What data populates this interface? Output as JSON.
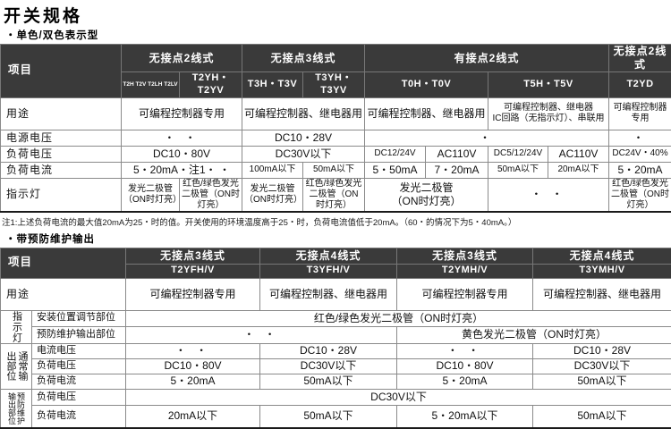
{
  "page": {
    "title": "开关规格",
    "section1": "・单色/双色表示型",
    "section2": "・带预防维护输出",
    "note1": "注1:上述负荷电流的最大值20mA为25・时的值。开关使用的环境温度高于25・时，负荷电流值低于20mA。（60・的情况下为5・40mA。）"
  },
  "colors": {
    "header_bg": "#3a3a3a",
    "header_text": "#ffffff",
    "grid": "#8a8a8a"
  },
  "table1": {
    "item_header": "项目",
    "groups": [
      {
        "label": "无接点2线式",
        "span": 2
      },
      {
        "label": "无接点3线式",
        "span": 2
      },
      {
        "label": "有接点2线式",
        "span": 4
      },
      {
        "label": "无接点2线式",
        "span": 1
      }
    ],
    "models": [
      {
        "label": "T2H T2V T2LH T2LV",
        "span": 1,
        "tiny": true
      },
      {
        "label": "T2YH・T2YV",
        "span": 1
      },
      {
        "label": "T3H・T3V",
        "span": 1
      },
      {
        "label": "T3YH・T3YV",
        "span": 1
      },
      {
        "label": "T0H・T0V",
        "span": 2
      },
      {
        "label": "T5H・T5V",
        "span": 2
      },
      {
        "label": "T2YD",
        "span": 1
      }
    ],
    "rows": [
      {
        "label": "用途",
        "cells": [
          {
            "text": "可编程控制器专用",
            "span": 2
          },
          {
            "text": "可编程控制器、继电器用",
            "span": 2
          },
          {
            "text": "可编程控制器、继电器用",
            "span": 2
          },
          {
            "text": "可编程控制器、继电器\nIC回路（无指示灯）、串联用",
            "span": 2,
            "small": true
          },
          {
            "text": "可编程控制器专用",
            "span": 1,
            "small": true
          }
        ]
      },
      {
        "label": "电源电压",
        "cells": [
          {
            "text": "・ ・",
            "span": 2,
            "dots": true
          },
          {
            "text": "DC10・28V",
            "span": 2
          },
          {
            "text": "・",
            "span": 4,
            "dots": true
          },
          {
            "text": "・",
            "span": 1,
            "dots": true
          }
        ]
      },
      {
        "label": "负荷电压",
        "cells": [
          {
            "text": "DC10・80V",
            "span": 2
          },
          {
            "text": "DC30V以下",
            "span": 2
          },
          {
            "text": "DC12/24V",
            "span": 1,
            "small": true
          },
          {
            "text": "AC110V",
            "span": 1
          },
          {
            "text": "DC5/12/24V",
            "span": 1,
            "small": true
          },
          {
            "text": "AC110V",
            "span": 1
          },
          {
            "text": "DC24V・40%",
            "span": 1,
            "small": true
          }
        ]
      },
      {
        "label": "负荷电流",
        "cells": [
          {
            "text": "5・20mA・注1・ ・",
            "span": 2
          },
          {
            "text": "100mA以下",
            "span": 1,
            "small": true
          },
          {
            "text": "50mA以下",
            "span": 1,
            "small": true
          },
          {
            "text": "5・50mA",
            "span": 1
          },
          {
            "text": "7・20mA",
            "span": 1
          },
          {
            "text": "50mA以下",
            "span": 1,
            "small": true
          },
          {
            "text": "20mA以下",
            "span": 1,
            "small": true
          },
          {
            "text": "5・20mA",
            "span": 1
          }
        ]
      },
      {
        "label": "指示灯",
        "cells": [
          {
            "text": "发光二极管\n（ON时灯亮）",
            "span": 1,
            "small": true
          },
          {
            "text": "红色/绿色发光\n二极管（ON时灯亮）",
            "span": 1,
            "small": true
          },
          {
            "text": "发光二极管\n（ON时灯亮）",
            "span": 1,
            "small": true
          },
          {
            "text": "红色/绿色发光\n二极管（ON时灯亮）",
            "span": 1,
            "small": true
          },
          {
            "text": "发光二极管\n（ON时灯亮）",
            "span": 2
          },
          {
            "text": "・ ・",
            "span": 2,
            "dots": true
          },
          {
            "text": "红色/绿色发光\n二极管（ON时灯亮）",
            "span": 1,
            "small": true
          }
        ]
      }
    ]
  },
  "table2": {
    "item_header": "项目",
    "groups": [
      {
        "label": "无接点3线式",
        "model": "T2YFH/V"
      },
      {
        "label": "无接点4线式",
        "model": "T3YFH/V"
      },
      {
        "label": "无接点3线式",
        "model": "T2YMH/V"
      },
      {
        "label": "无接点4线式",
        "model": "T3YMH/V"
      }
    ],
    "sections": [
      {
        "group": null,
        "rows": [
          {
            "label": "用途",
            "cells": [
              {
                "text": "可编程控制器专用"
              },
              {
                "text": "可编程控制器、继电器用"
              },
              {
                "text": "可编程控制器专用"
              },
              {
                "text": "可编程控制器、继电器用"
              }
            ]
          }
        ]
      },
      {
        "group": "指示灯",
        "rows": [
          {
            "label": "安装位置调节部位",
            "cells": [
              {
                "text": "红色/绿色发光二极管（ON时灯亮）",
                "span": 4
              }
            ]
          },
          {
            "label": "预防维护输出部位",
            "cells": [
              {
                "text": "・ ・",
                "span": 2,
                "dots": true
              },
              {
                "text": "黄色发光二极管（ON时灯亮）",
                "span": 2
              }
            ]
          }
        ]
      },
      {
        "group": "通常输出部位",
        "rows": [
          {
            "label": "电流电压",
            "cells": [
              {
                "text": "・ ・",
                "dots": true
              },
              {
                "text": "DC10・28V"
              },
              {
                "text": "・ ・",
                "dots": true
              },
              {
                "text": "DC10・28V"
              }
            ]
          },
          {
            "label": "负荷电压",
            "cells": [
              {
                "text": "DC10・80V"
              },
              {
                "text": "DC30V以下"
              },
              {
                "text": "DC10・80V"
              },
              {
                "text": "DC30V以下"
              }
            ]
          },
          {
            "label": "负荷电流",
            "cells": [
              {
                "text": "5・20mA"
              },
              {
                "text": "50mA以下"
              },
              {
                "text": "5・20mA"
              },
              {
                "text": "50mA以下"
              }
            ]
          }
        ]
      },
      {
        "group": "预防维护输出部位",
        "rows": [
          {
            "label": "负荷电压",
            "cells": [
              {
                "text": "DC30V以下",
                "span": 4
              }
            ]
          },
          {
            "label": "负荷电流",
            "cells": [
              {
                "text": "20mA以下"
              },
              {
                "text": "50mA以下"
              },
              {
                "text": "5・20mA以下"
              },
              {
                "text": "50mA以下"
              }
            ]
          }
        ]
      }
    ]
  }
}
